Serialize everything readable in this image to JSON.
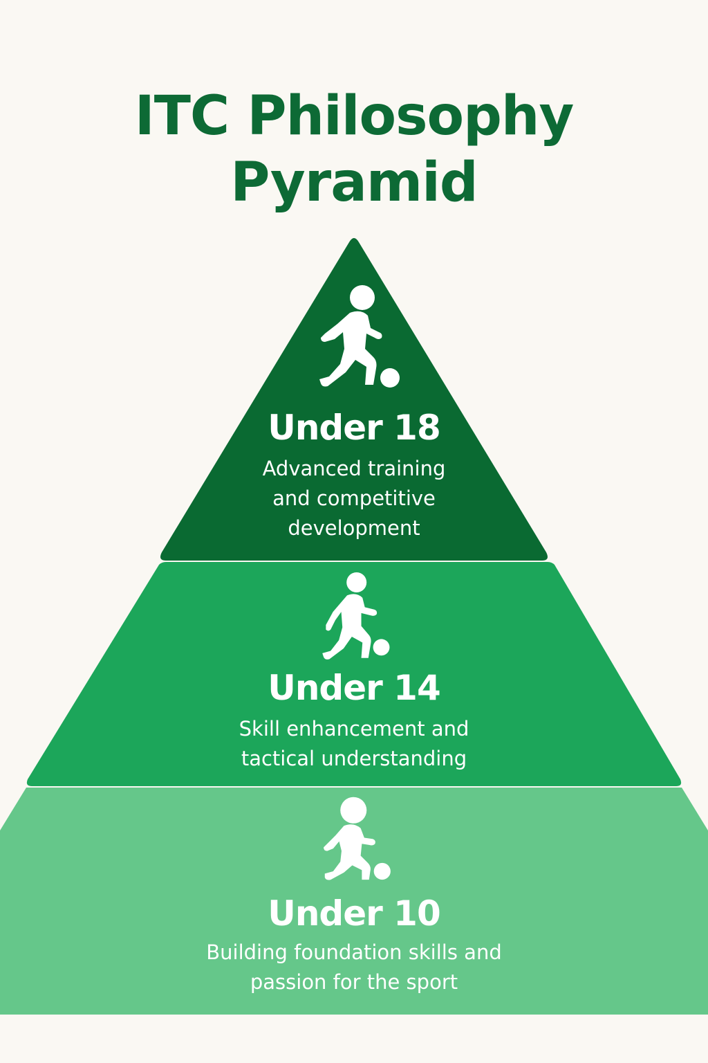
{
  "title": {
    "line1": "ITC Philosophy",
    "line2": "Pyramid"
  },
  "colors": {
    "background": "#faf8f3",
    "title": "#0d6a35",
    "tier_top": "#0a6a32",
    "tier_middle": "#1ca65a",
    "tier_bottom": "#65c78a",
    "text": "#ffffff"
  },
  "tiers": [
    {
      "label": "Under 18",
      "desc_line1": "Advanced training",
      "desc_line2": "and competitive",
      "desc_line3": "development",
      "icon": "player-dribbling-icon"
    },
    {
      "label": "Under 14",
      "desc_line1": "Skill enhancement and",
      "desc_line2": "tactical understanding",
      "icon": "player-dribbling-icon"
    },
    {
      "label": "Under 10",
      "desc_line1": "Building foundation skills and",
      "desc_line2": "passion for the sport",
      "icon": "child-player-icon"
    }
  ]
}
